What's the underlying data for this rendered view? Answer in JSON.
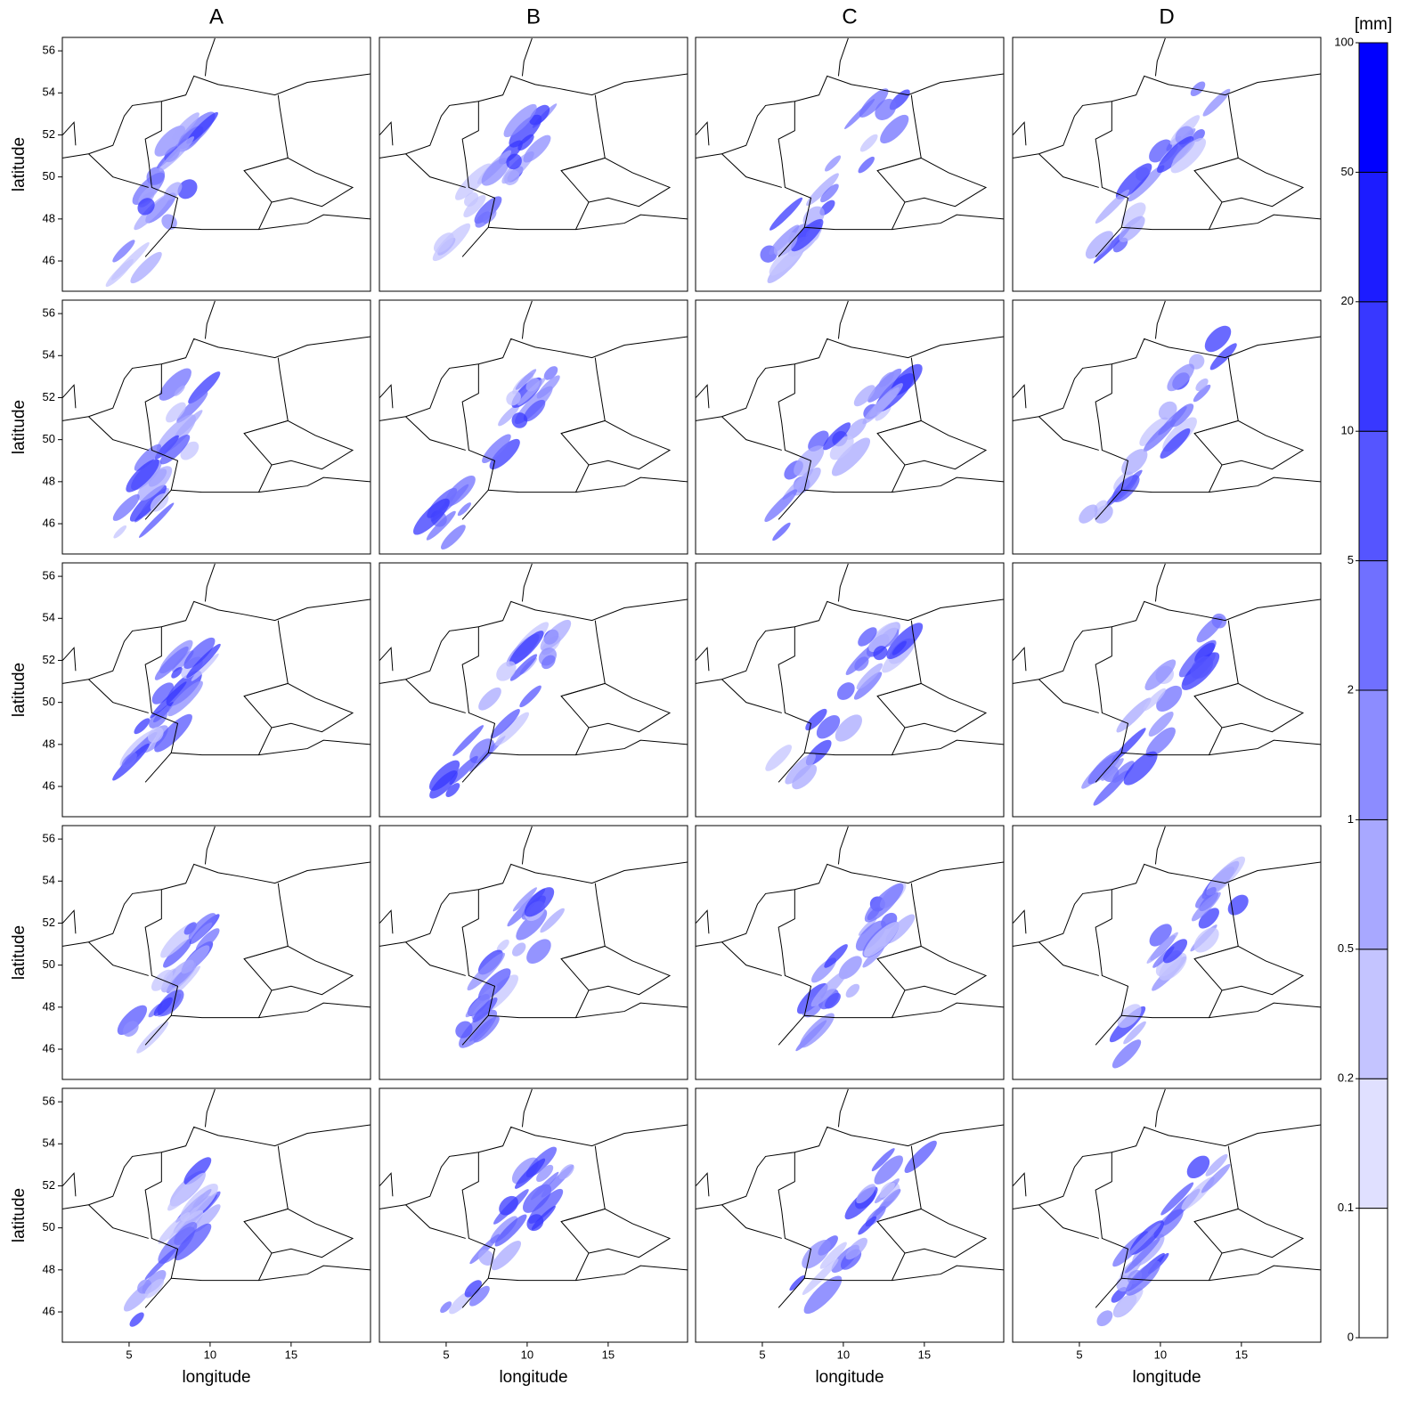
{
  "chart_data": {
    "type": "map-panels",
    "columns": [
      "A",
      "B",
      "C",
      "D"
    ],
    "x_label": "longitude",
    "y_label": "latitude",
    "xlim": [
      0.88,
      19.9
    ],
    "ylim": [
      44.56,
      56.64
    ],
    "xticks": [
      5,
      10,
      15
    ],
    "yticks": [
      46,
      48,
      50,
      52,
      54,
      56
    ],
    "colorbar": {
      "label": "[mm]",
      "levels": [
        0,
        0.1,
        0.2,
        0.5,
        1,
        2,
        5,
        10,
        20,
        50,
        100
      ],
      "colors": [
        "#ffffff",
        "#e0e0ff",
        "#c4c4ff",
        "#a8a8ff",
        "#8c8cff",
        "#7070ff",
        "#5555ff",
        "#3838ff",
        "#1c1cff",
        "#0000ff"
      ]
    }
  }
}
